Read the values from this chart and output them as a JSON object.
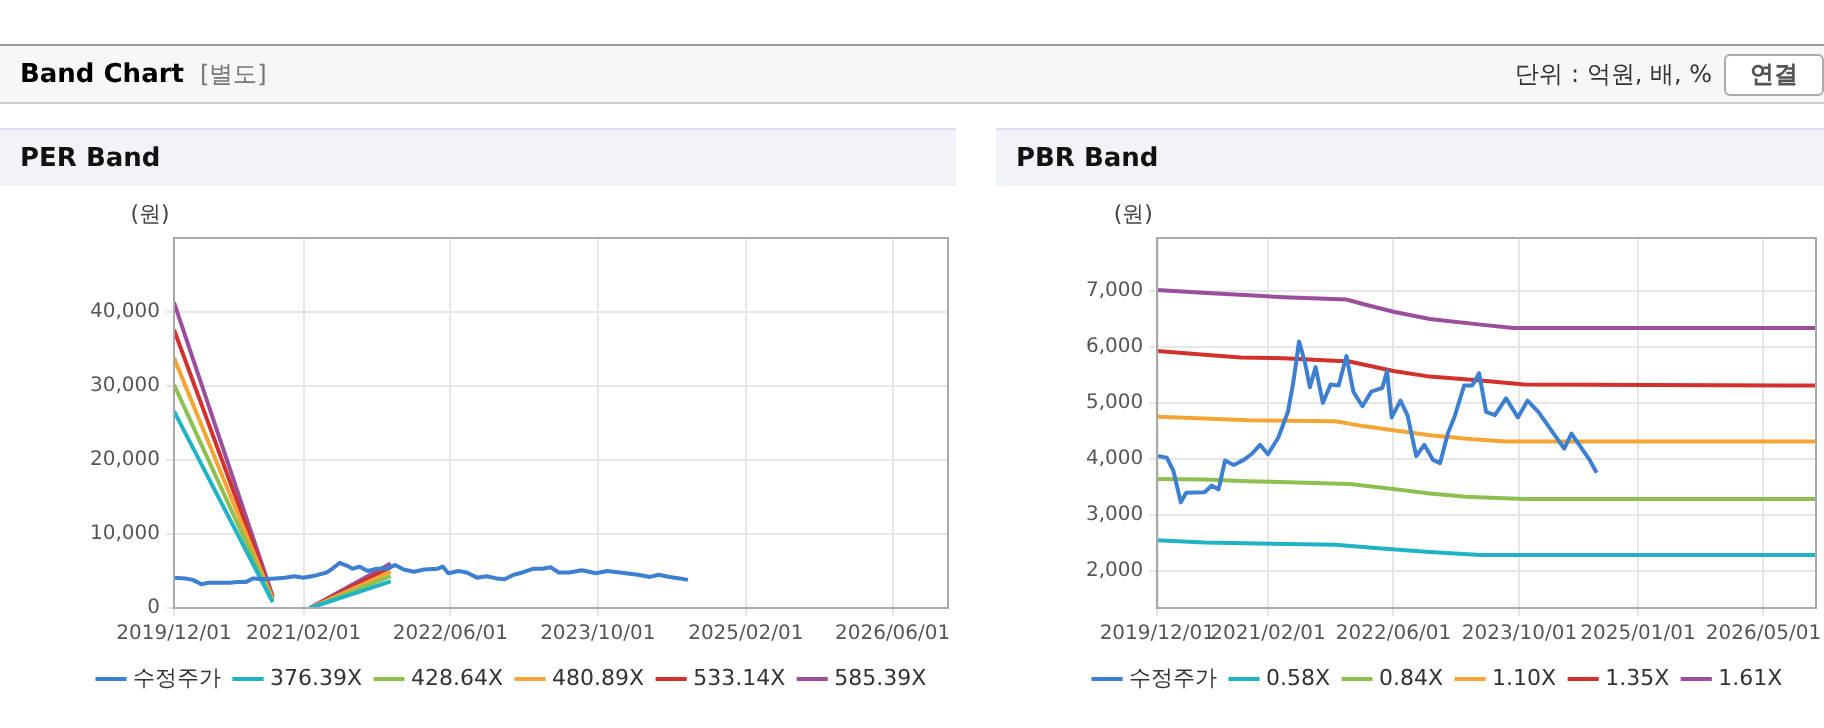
{
  "chart_data": [
    {
      "type": "line",
      "title": "PER Band",
      "ylabel": "(원)",
      "annotations": [
        "Band Chart",
        "[별도]",
        "단위 : 억원, 배, %",
        "연결"
      ],
      "x": [
        "2019-12-01",
        "2020-01-07",
        "2020-02-01",
        "2020-03-01",
        "2020-03-22",
        "2020-06-01",
        "2020-06-28",
        "2020-07-25",
        "2020-08-19",
        "2020-09-22",
        "2020-11-01",
        "2020-12-01",
        "2021-01-01",
        "2021-02-01",
        "2021-03-13",
        "2021-04-19",
        "2021-05-10",
        "2021-06-01",
        "2021-06-25",
        "2021-07-13",
        "2021-08-04",
        "2021-09-01",
        "2021-10-01",
        "2021-11-01",
        "2021-12-01",
        "2021-12-28",
        "2022-02-01",
        "2022-03-07",
        "2022-04-19",
        "2022-05-07",
        "2022-05-25",
        "2022-06-28",
        "2022-07-25",
        "2022-08-28",
        "2022-09-28",
        "2022-11-01",
        "2022-11-28",
        "2022-12-28",
        "2023-01-25",
        "2023-03-01",
        "2023-04-01",
        "2023-04-28",
        "2023-05-25",
        "2023-06-28",
        "2023-08-10",
        "2023-09-25",
        "2023-11-01",
        "2023-12-13",
        "2024-02-10",
        "2024-03-22",
        "2024-04-19",
        "2024-05-25",
        "2024-06-28",
        "2024-07-25"
      ],
      "series": [
        {
          "name": "수정주가",
          "color": "#3d7fd0",
          "values": [
            4100,
            4000,
            3800,
            3200,
            3400,
            3400,
            3500,
            3500,
            4000,
            3900,
            4000,
            4100,
            4300,
            4100,
            4400,
            4800,
            5400,
            6100,
            5700,
            5300,
            5600,
            5000,
            5300,
            5300,
            5800,
            5200,
            4900,
            5200,
            5300,
            5600,
            4700,
            5000,
            4800,
            4100,
            4300,
            4000,
            3900,
            4500,
            4800,
            5300,
            5300,
            5500,
            4800,
            4800,
            5100,
            4700,
            5000,
            4800,
            4500,
            4200,
            4500,
            4200,
            4000,
            3800
          ]
        },
        {
          "name": "376.39X",
          "color": "#1fb3c4",
          "x": [
            "2019-12-01",
            "2020-10-22",
            "2020-12-01",
            "2021-02-22",
            "2021-11-16"
          ],
          "values": [
            26600,
            800,
            null,
            0,
            3600
          ]
        },
        {
          "name": "428.64X",
          "color": "#8dc050",
          "x": [
            "2019-12-01",
            "2020-10-22",
            "2020-12-01",
            "2021-02-22",
            "2021-11-16"
          ],
          "values": [
            30200,
            1000,
            null,
            0,
            4300
          ]
        },
        {
          "name": "480.89X",
          "color": "#f4a534",
          "x": [
            "2019-12-01",
            "2020-10-22",
            "2020-12-01",
            "2021-02-22",
            "2021-11-16"
          ],
          "values": [
            33800,
            1200,
            null,
            0,
            4900
          ]
        },
        {
          "name": "533.14X",
          "color": "#d2312e",
          "x": [
            "2019-12-01",
            "2020-10-22",
            "2020-12-01",
            "2021-02-22",
            "2021-11-16"
          ],
          "values": [
            37600,
            1400,
            null,
            0,
            5500
          ]
        },
        {
          "name": "585.39X",
          "color": "#9a4f9c",
          "x": [
            "2019-12-01",
            "2020-10-22",
            "2020-12-01",
            "2021-02-22",
            "2021-11-16"
          ],
          "values": [
            41300,
            1600,
            null,
            0,
            6000
          ]
        }
      ],
      "xlim": [
        "2019-12-01",
        "2026-12-01"
      ],
      "xticks": [
        {
          "value": "2019-12-01",
          "label": "2019/12/01"
        },
        {
          "value": "2021-02-01",
          "label": "2021/02/01"
        },
        {
          "value": "2022-06-01",
          "label": "2022/06/01"
        },
        {
          "value": "2023-10-01",
          "label": "2023/10/01"
        },
        {
          "value": "2025-02-01",
          "label": "2025/02/01"
        },
        {
          "value": "2026-06-01",
          "label": "2026/06/01"
        }
      ],
      "ylim": [
        0,
        50000
      ],
      "yticks": [
        0,
        {
          "value": 10000,
          "label": "10,000"
        },
        {
          "value": 20000,
          "label": "20,000"
        },
        {
          "value": 30000,
          "label": "30,000"
        },
        {
          "value": 40000,
          "label": "40,000"
        }
      ],
      "grid": true,
      "legend": "bottom"
    },
    {
      "type": "line",
      "title": "PBR Band",
      "ylabel": "(원)",
      "x": [
        "2019-12-01",
        "2020-01-07",
        "2020-02-01",
        "2020-03-01",
        "2020-03-22",
        "2020-06-01",
        "2020-06-28",
        "2020-07-25",
        "2020-08-19",
        "2020-09-22",
        "2020-11-01",
        "2020-12-01",
        "2021-01-01",
        "2021-02-01",
        "2021-03-13",
        "2021-04-19",
        "2021-05-10",
        "2021-06-01",
        "2021-06-25",
        "2021-07-13",
        "2021-08-04",
        "2021-09-01",
        "2021-10-01",
        "2021-11-01",
        "2021-12-01",
        "2021-12-28",
        "2022-02-01",
        "2022-03-07",
        "2022-04-19",
        "2022-05-07",
        "2022-05-25",
        "2022-06-28",
        "2022-07-25",
        "2022-08-28",
        "2022-09-28",
        "2022-11-01",
        "2022-11-28",
        "2022-12-28",
        "2023-01-25",
        "2023-03-01",
        "2023-04-01",
        "2023-04-28",
        "2023-05-25",
        "2023-06-28",
        "2023-08-10",
        "2023-09-25",
        "2023-11-01",
        "2023-12-13",
        "2024-02-10",
        "2024-03-22",
        "2024-04-19",
        "2024-05-25",
        "2024-06-28",
        "2024-07-25"
      ],
      "series": [
        {
          "name": "수정주가",
          "color": "#3d7fd0",
          "values": [
            4050,
            4020,
            3790,
            3220,
            3390,
            3400,
            3520,
            3450,
            3970,
            3890,
            3985,
            4090,
            4250,
            4080,
            4380,
            4840,
            5370,
            6100,
            5700,
            5280,
            5640,
            5000,
            5330,
            5310,
            5840,
            5200,
            4940,
            5200,
            5270,
            5570,
            4740,
            5040,
            4780,
            4050,
            4250,
            3980,
            3920,
            4450,
            4780,
            5310,
            5310,
            5530,
            4840,
            4780,
            5080,
            4740,
            5040,
            4840,
            4450,
            4180,
            4450,
            4210,
            3980,
            3750
          ]
        },
        {
          "name": "0.58X",
          "color": "#1fb3c4",
          "x": [
            "2019-12-01",
            "2020-06-01",
            "2021-10-19",
            "2022-04-04",
            "2022-10-19",
            "2023-05-04",
            "2026-11-20"
          ],
          "values": [
            2540,
            2500,
            2460,
            2400,
            2330,
            2280,
            2280
          ]
        },
        {
          "name": "0.84X",
          "color": "#8dc050",
          "x": [
            "2019-12-01",
            "2020-06-01",
            "2020-11-16",
            "2021-12-13",
            "2022-06-01",
            "2022-10-19",
            "2023-03-07",
            "2023-10-19",
            "2026-11-20"
          ],
          "values": [
            3640,
            3630,
            3600,
            3550,
            3460,
            3380,
            3320,
            3280,
            3280
          ]
        },
        {
          "name": "1.10X",
          "color": "#f4a534",
          "x": [
            "2019-12-01",
            "2020-06-01",
            "2020-11-16",
            "2021-10-19",
            "2022-02-10",
            "2022-06-01",
            "2022-10-19",
            "2023-04-04",
            "2023-08-10",
            "2026-11-20"
          ],
          "values": [
            4750,
            4720,
            4690,
            4670,
            4580,
            4510,
            4420,
            4350,
            4310,
            4310
          ]
        },
        {
          "name": "1.35X",
          "color": "#d2312e",
          "x": [
            "2019-12-01",
            "2020-06-01",
            "2020-10-19",
            "2021-04-04",
            "2021-12-13",
            "2022-06-01",
            "2022-10-19",
            "2023-05-04",
            "2023-10-19",
            "2026-11-20"
          ],
          "values": [
            5930,
            5860,
            5810,
            5800,
            5740,
            5570,
            5470,
            5400,
            5330,
            5310
          ]
        },
        {
          "name": "1.61X",
          "color": "#9a4f9c",
          "x": [
            "2019-12-01",
            "2020-06-28",
            "2021-04-04",
            "2021-12-01",
            "2022-02-10",
            "2022-06-01",
            "2022-10-19",
            "2023-05-04",
            "2023-09-07",
            "2026-11-20"
          ],
          "values": [
            7020,
            6960,
            6890,
            6850,
            6760,
            6630,
            6500,
            6400,
            6340,
            6340
          ]
        }
      ],
      "xlim": [
        "2019-12-01",
        "2026-11-20"
      ],
      "xticks": [
        {
          "value": "2019-12-01",
          "label": "2019/12/01"
        },
        {
          "value": "2021-02-01",
          "label": "2021/02/01"
        },
        {
          "value": "2022-06-01",
          "label": "2022/06/01"
        },
        {
          "value": "2023-10-01",
          "label": "2023/10/01"
        },
        {
          "value": "2025-01-01",
          "label": "2025/01/01"
        },
        {
          "value": "2026-05-01",
          "label": "2026/05/01"
        }
      ],
      "ylim": [
        1330,
        7950
      ],
      "yticks": [
        {
          "value": 2000,
          "label": "2,000"
        },
        {
          "value": 3000,
          "label": "3,000"
        },
        {
          "value": 4000,
          "label": "4,000"
        },
        {
          "value": 5000,
          "label": "5,000"
        },
        {
          "value": 6000,
          "label": "6,000"
        },
        {
          "value": 7000,
          "label": "7,000"
        }
      ],
      "grid": true,
      "legend": "bottom"
    }
  ]
}
